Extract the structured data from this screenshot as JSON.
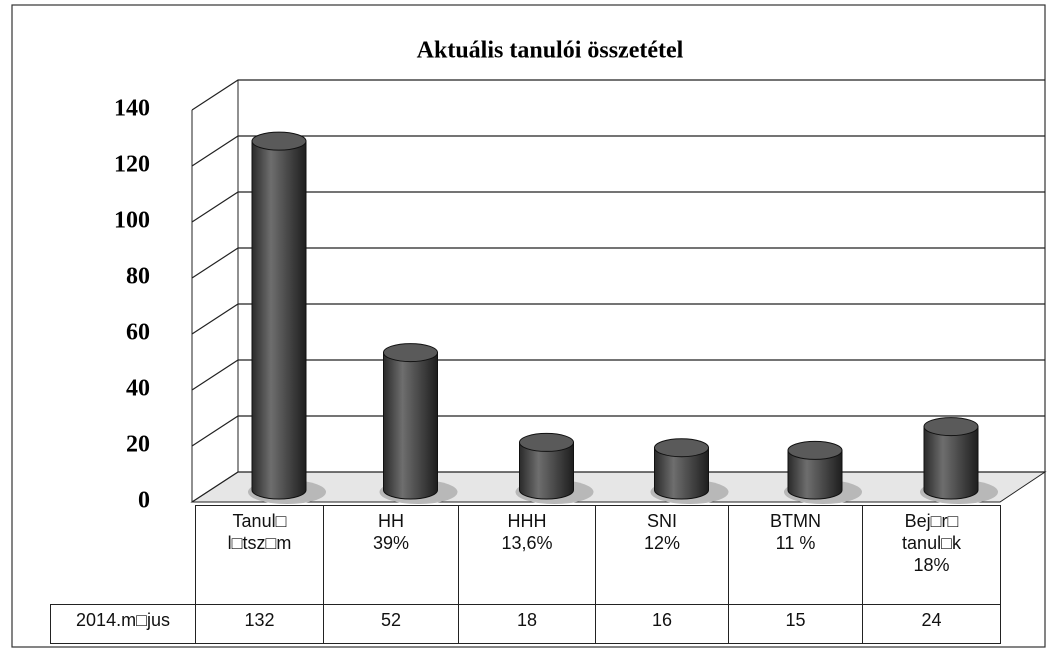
{
  "chart_data": {
    "type": "bar3d",
    "title": "Aktuális tanulói összetétel",
    "categories": [
      "Tanul□\nl□tsz□m",
      "HH\n39%",
      "HHH\n13,6%",
      "SNI\n12%",
      "BTMN\n11 %",
      "Bej□r□\ntanul□k\n18%"
    ],
    "series": [
      {
        "name": "2014.m□jus",
        "color": "#4a4a4a",
        "values": [
          132,
          52,
          18,
          16,
          15,
          24
        ]
      }
    ],
    "ylim": [
      0,
      140
    ],
    "yticks": [
      0,
      20,
      40,
      60,
      80,
      100,
      120,
      140
    ],
    "grid": true
  }
}
